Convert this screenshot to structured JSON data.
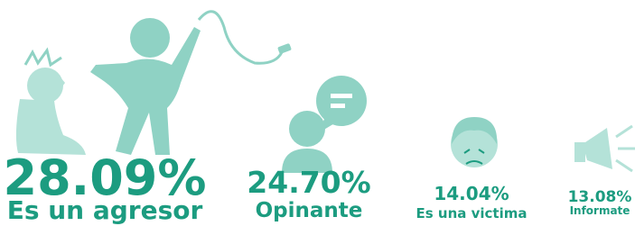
{
  "chart_data": {
    "type": "pictogram",
    "categories": [
      "Es un agresor",
      "Opinante",
      "Es una victima",
      "Informate"
    ],
    "values": [
      28.09,
      24.7,
      14.04,
      13.08
    ],
    "value_labels": [
      "28.09%",
      "24.70%",
      "14.04%",
      "13.08%"
    ],
    "color": "#1c9c80"
  }
}
